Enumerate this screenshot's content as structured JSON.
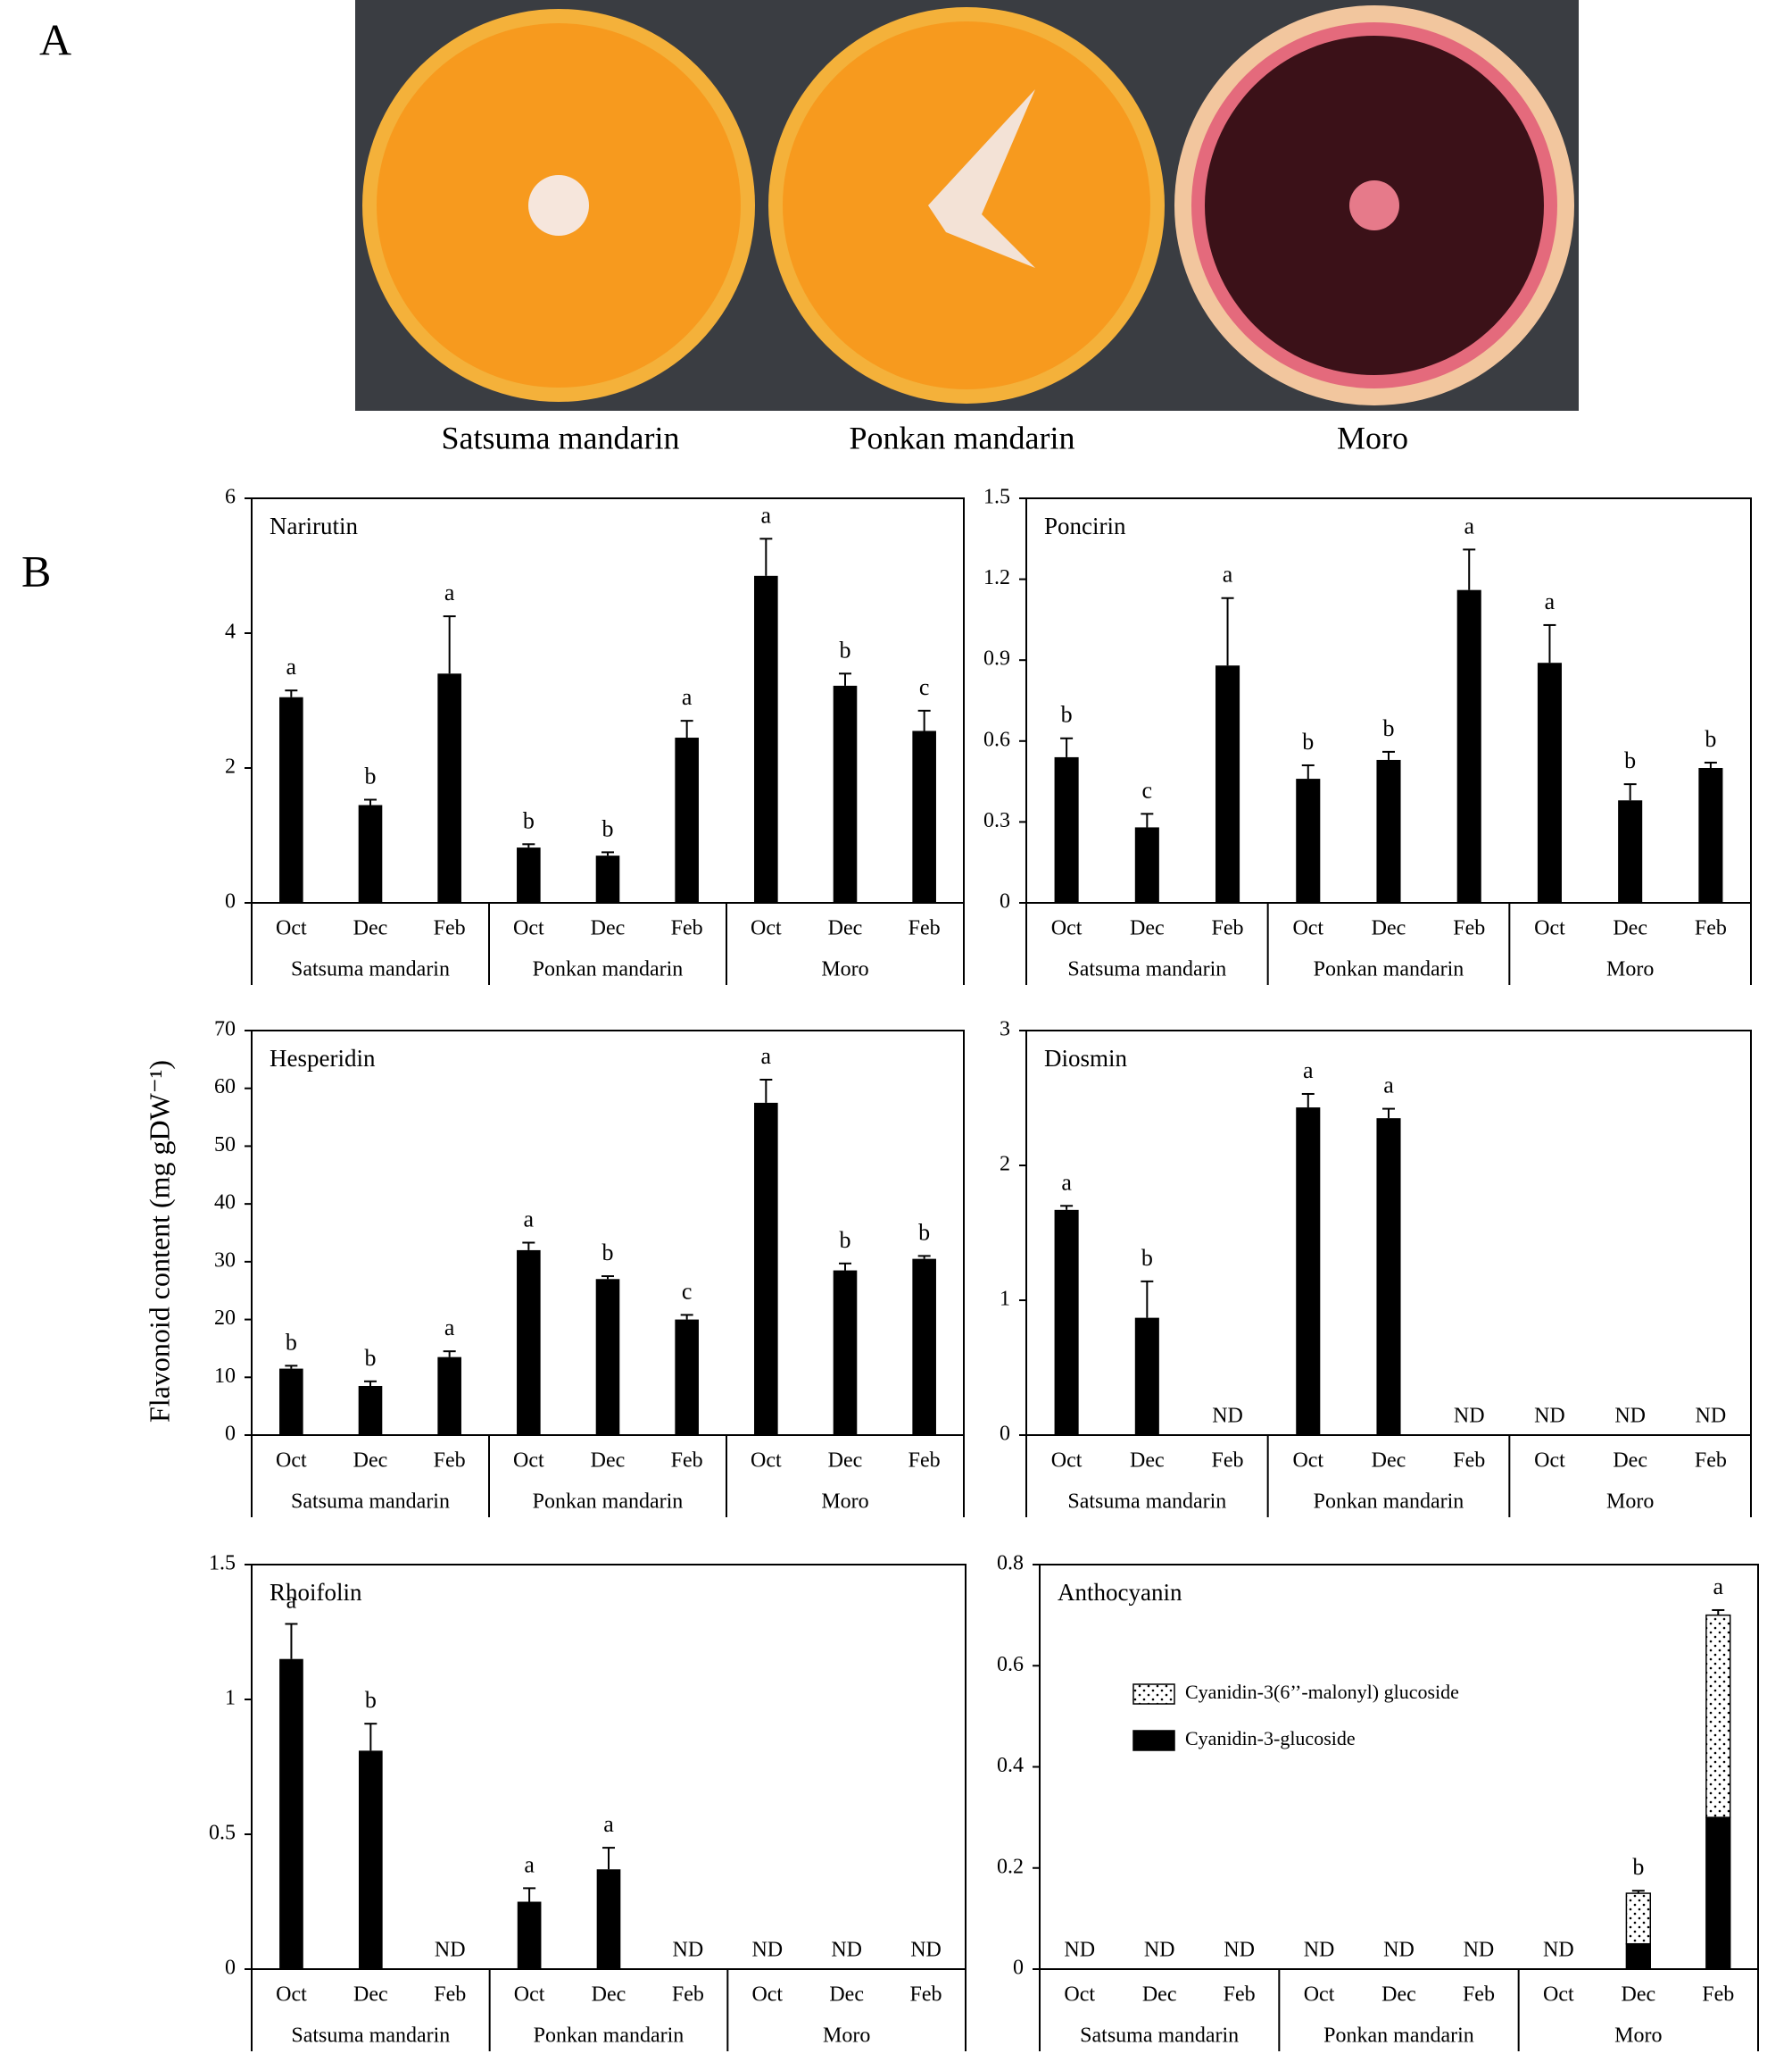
{
  "panel_a": {
    "label": "A",
    "photos": [
      "Satsuma mandarin",
      "Ponkan mandarin",
      "Moro"
    ]
  },
  "panel_b_label": "B",
  "y_axis_label": "Flavonoid content (mg gDW⁻¹)",
  "chart_data": [
    {
      "type": "bar",
      "title": "Narirutin",
      "categories": [
        "Oct",
        "Dec",
        "Feb",
        "Oct",
        "Dec",
        "Feb",
        "Oct",
        "Dec",
        "Feb"
      ],
      "groups": [
        "Satsuma mandarin",
        "Ponkan mandarin",
        "Moro"
      ],
      "values": [
        3.05,
        1.45,
        3.4,
        0.82,
        0.7,
        2.45,
        4.85,
        3.22,
        2.55
      ],
      "errors": [
        0.1,
        0.08,
        0.85,
        0.05,
        0.05,
        0.25,
        0.55,
        0.18,
        0.3
      ],
      "annotations": [
        "a",
        "b",
        "a",
        "b",
        "b",
        "a",
        "a",
        "b",
        "c"
      ],
      "color": "#000000",
      "ylim": [
        0,
        6
      ],
      "yticks": [
        0,
        2,
        4,
        6
      ]
    },
    {
      "type": "bar",
      "title": "Poncirin",
      "categories": [
        "Oct",
        "Dec",
        "Feb",
        "Oct",
        "Dec",
        "Feb",
        "Oct",
        "Dec",
        "Feb"
      ],
      "groups": [
        "Satsuma mandarin",
        "Ponkan mandarin",
        "Moro"
      ],
      "values": [
        0.54,
        0.28,
        0.88,
        0.46,
        0.53,
        1.16,
        0.89,
        0.38,
        0.5
      ],
      "errors": [
        0.07,
        0.05,
        0.25,
        0.05,
        0.03,
        0.15,
        0.14,
        0.06,
        0.02
      ],
      "annotations": [
        "b",
        "c",
        "a",
        "b",
        "b",
        "a",
        "a",
        "b",
        "b"
      ],
      "color": "#000000",
      "ylim": [
        0,
        1.5
      ],
      "yticks": [
        0,
        0.3,
        0.6,
        0.9,
        1.2,
        1.5
      ]
    },
    {
      "type": "bar",
      "title": "Hesperidin",
      "categories": [
        "Oct",
        "Dec",
        "Feb",
        "Oct",
        "Dec",
        "Feb",
        "Oct",
        "Dec",
        "Feb"
      ],
      "groups": [
        "Satsuma mandarin",
        "Ponkan mandarin",
        "Moro"
      ],
      "values": [
        11.5,
        8.5,
        13.5,
        32,
        27,
        20,
        57.5,
        28.5,
        30.5
      ],
      "errors": [
        0.5,
        0.8,
        1,
        1.3,
        0.5,
        0.8,
        4,
        1.2,
        0.5
      ],
      "annotations": [
        "b",
        "b",
        "a",
        "a",
        "b",
        "c",
        "a",
        "b",
        "b"
      ],
      "color": "#000000",
      "ylim": [
        0,
        70
      ],
      "yticks": [
        0,
        10,
        20,
        30,
        40,
        50,
        60,
        70
      ]
    },
    {
      "type": "bar",
      "title": "Diosmin",
      "categories": [
        "Oct",
        "Dec",
        "Feb",
        "Oct",
        "Dec",
        "Feb",
        "Oct",
        "Dec",
        "Feb"
      ],
      "groups": [
        "Satsuma mandarin",
        "Ponkan mandarin",
        "Moro"
      ],
      "values": [
        1.67,
        0.87,
        null,
        2.43,
        2.35,
        null,
        null,
        null,
        null
      ],
      "value_labels": [
        null,
        null,
        "ND",
        null,
        null,
        "ND",
        "ND",
        "ND",
        "ND"
      ],
      "errors": [
        0.03,
        0.27,
        null,
        0.1,
        0.07,
        null,
        null,
        null,
        null
      ],
      "annotations": [
        "a",
        "b",
        null,
        "a",
        "a",
        null,
        null,
        null,
        null
      ],
      "color": "#000000",
      "ylim": [
        0,
        3
      ],
      "yticks": [
        0,
        1,
        2,
        3
      ]
    },
    {
      "type": "bar",
      "title": "Rhoifolin",
      "categories": [
        "Oct",
        "Dec",
        "Feb",
        "Oct",
        "Dec",
        "Feb",
        "Oct",
        "Dec",
        "Feb"
      ],
      "groups": [
        "Satsuma mandarin",
        "Ponkan mandarin",
        "Moro"
      ],
      "values": [
        1.15,
        0.81,
        null,
        0.25,
        0.37,
        null,
        null,
        null,
        null
      ],
      "value_labels": [
        null,
        null,
        "ND",
        null,
        null,
        "ND",
        "ND",
        "ND",
        "ND"
      ],
      "errors": [
        0.13,
        0.1,
        null,
        0.05,
        0.08,
        null,
        null,
        null,
        null
      ],
      "annotations": [
        "a",
        "b",
        null,
        "a",
        "a",
        null,
        null,
        null,
        null
      ],
      "color": "#000000",
      "ylim": [
        0,
        1.5
      ],
      "yticks": [
        0,
        0.5,
        1,
        1.5
      ]
    },
    {
      "type": "stacked_bar",
      "title": "Anthocyanin",
      "categories": [
        "Oct",
        "Dec",
        "Feb",
        "Oct",
        "Dec",
        "Feb",
        "Oct",
        "Dec",
        "Feb"
      ],
      "groups": [
        "Satsuma mandarin",
        "Ponkan mandarin",
        "Moro"
      ],
      "series": [
        {
          "name": "Cyanidin-3-glucoside",
          "color": "#000000",
          "values": [
            null,
            null,
            null,
            null,
            null,
            null,
            null,
            0.05,
            0.3
          ],
          "value_labels": [
            "ND",
            "ND",
            "ND",
            "ND",
            "ND",
            "ND",
            "ND",
            null,
            null
          ]
        },
        {
          "name": "Cyanidin-3(6’’-malonyl) glucoside",
          "color": "#ffffff",
          "pattern": "dots",
          "values": [
            null,
            null,
            null,
            null,
            null,
            null,
            null,
            0.1,
            0.4
          ],
          "errors": [
            null,
            null,
            null,
            null,
            null,
            null,
            null,
            0.005,
            0.01
          ]
        }
      ],
      "annotations": [
        null,
        null,
        null,
        null,
        null,
        null,
        null,
        "b",
        "a"
      ],
      "legend_position": "upper left",
      "ylim": [
        0,
        0.8
      ],
      "yticks": [
        0,
        0.2,
        0.4,
        0.6,
        0.8
      ]
    }
  ]
}
